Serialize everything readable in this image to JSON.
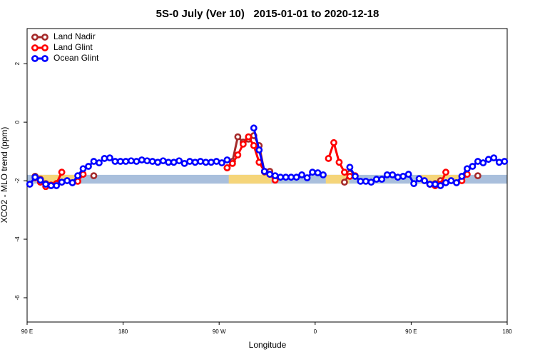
{
  "chart_data": {
    "type": "line",
    "title": "5S-0 July (Ver 10)   2015-01-01 to 2020-12-18",
    "x_label": "Longitude",
    "y_label": "XCO2 - MLO trend (ppm)",
    "xlim": [
      90,
      540
    ],
    "ylim": [
      -6.83,
      3.2
    ],
    "xticks": [
      {
        "value": 90,
        "label": "90 E"
      },
      180,
      {
        "value": 270,
        "label": "90 W"
      },
      {
        "value": 360,
        "label": "0"
      },
      {
        "value": 450,
        "label": "90 E"
      },
      {
        "value": 540,
        "label": "180"
      }
    ],
    "yticks": [
      2,
      0,
      -2,
      -4,
      -6
    ],
    "legend": "top-left",
    "band": {
      "ylim": [
        -2.1,
        -1.8
      ],
      "color": "#a9bfdc",
      "land_color": "#f5d57a",
      "land": [
        [
          101,
          138
        ],
        [
          279,
          319
        ],
        [
          370,
          392
        ],
        [
          459,
          499
        ]
      ]
    },
    "series": [
      {
        "name": "Land Nadir",
        "color": "#a52a2a",
        "x": [
          97.5,
          102.5,
          107.5,
          112.5,
          117.5,
          122.5,
          137.5,
          152.5,
          267.5,
          277.5,
          282.5,
          287.5,
          292.5,
          297.5,
          302.5,
          307.5,
          312.5,
          317.5,
          322.5,
          382.5,
          387.5,
          392.5,
          467.5,
          472.5,
          477.5,
          502.5,
          512.5
        ],
        "values": [
          -1.85,
          -1.95,
          -2.1,
          -2.15,
          -2.1,
          -2.05,
          null,
          -1.83,
          null,
          -1.56,
          -1.34,
          -0.5,
          -0.68,
          -0.58,
          -0.46,
          -0.8,
          -1.7,
          -1.68,
          -1.93,
          null,
          -2.05,
          -1.75,
          null,
          -2.1,
          -2.0,
          null,
          -1.83
        ]
      },
      {
        "name": "Land Glint",
        "color": "#ff0000",
        "x": [
          97.5,
          102.5,
          107.5,
          112.5,
          117.5,
          122.5,
          130,
          137.5,
          142.5,
          270,
          277.5,
          282.5,
          287.5,
          292.5,
          297.5,
          302.5,
          307.5,
          312.5,
          317.5,
          322.5,
          365,
          372.5,
          377.5,
          382.5,
          387.5,
          392.5,
          397.5,
          460,
          467.5,
          472.5,
          477.5,
          482.5,
          490,
          497.5,
          502.5
        ],
        "values": [
          -1.9,
          -2.05,
          -2.2,
          -2.15,
          -2.1,
          -1.71,
          null,
          -2.02,
          -1.78,
          null,
          -1.56,
          -1.41,
          -1.12,
          -0.75,
          -0.5,
          -0.8,
          -1.37,
          -1.68,
          -1.78,
          -1.98,
          null,
          -1.24,
          -0.7,
          -1.37,
          -1.71,
          -1.85,
          -1.83,
          null,
          -2.12,
          -2.17,
          -2.12,
          -1.71,
          null,
          -2.0,
          -1.78
        ]
      },
      {
        "name": "Ocean Glint",
        "color": "#0000ff",
        "x": [
          92.5,
          97.5,
          102.5,
          107.5,
          112.5,
          117.5,
          122.5,
          127.5,
          132.5,
          137.5,
          142.5,
          147.5,
          152.5,
          157.5,
          162.5,
          167.5,
          172.5,
          177.5,
          182.5,
          187.5,
          192.5,
          197.5,
          202.5,
          207.5,
          212.5,
          217.5,
          222.5,
          227.5,
          232.5,
          237.5,
          242.5,
          247.5,
          252.5,
          257.5,
          262.5,
          267.5,
          272.5,
          277.5,
          290,
          302.5,
          307.5,
          312.5,
          317.5,
          322.5,
          327.5,
          332.5,
          337.5,
          342.5,
          347.5,
          352.5,
          357.5,
          362.5,
          367.5,
          380,
          392.5,
          397.5,
          402.5,
          407.5,
          412.5,
          417.5,
          422.5,
          427.5,
          432.5,
          437.5,
          442.5,
          447.5,
          452.5,
          457.5,
          462.5,
          467.5,
          472.5,
          477.5,
          482.5,
          487.5,
          492.5,
          497.5,
          502.5,
          507.5,
          512.5,
          517.5,
          522.5,
          527.5,
          532.5,
          537.5
        ],
        "values": [
          -2.12,
          -1.88,
          -1.98,
          -2.12,
          -2.17,
          -2.17,
          -2.05,
          -2.0,
          -2.07,
          -1.83,
          -1.59,
          -1.51,
          -1.34,
          -1.39,
          -1.24,
          -1.22,
          -1.34,
          -1.34,
          -1.34,
          -1.32,
          -1.34,
          -1.29,
          -1.32,
          -1.34,
          -1.37,
          -1.32,
          -1.37,
          -1.37,
          -1.32,
          -1.41,
          -1.34,
          -1.37,
          -1.34,
          -1.37,
          -1.37,
          -1.34,
          -1.39,
          -1.29,
          null,
          -0.2,
          -0.95,
          -1.68,
          -1.78,
          -1.83,
          -1.88,
          -1.88,
          -1.88,
          -1.88,
          -1.8,
          -1.9,
          -1.71,
          -1.73,
          -1.8,
          null,
          -1.54,
          -1.85,
          -2.02,
          -2.02,
          -2.05,
          -1.95,
          -1.95,
          -1.8,
          -1.8,
          -1.88,
          -1.85,
          -1.78,
          -2.1,
          -1.93,
          -2.0,
          -2.12,
          -2.12,
          -2.17,
          -2.07,
          -2.0,
          -2.07,
          -1.85,
          -1.59,
          -1.51,
          -1.34,
          -1.39,
          -1.27,
          -1.22,
          -1.37,
          -1.34
        ]
      }
    ]
  }
}
